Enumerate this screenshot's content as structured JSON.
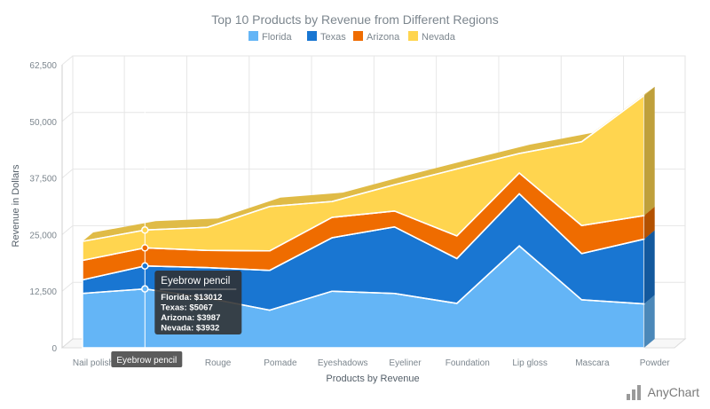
{
  "chart_data": {
    "type": "area",
    "stacked": true,
    "three_d": true,
    "title": "Top 10 Products by Revenue from Different Regions",
    "xlabel": "Products by Revenue",
    "ylabel": "Revenue in Dollars",
    "ylim": [
      0,
      62500
    ],
    "yticks": [
      0,
      12500,
      25000,
      37500,
      50000,
      62500
    ],
    "ytick_labels": [
      "0",
      "12,500",
      "25,000",
      "37,500",
      "50,000",
      "62,500"
    ],
    "grid": true,
    "legend_position": "top",
    "categories": [
      "Nail polish",
      "Eyebrow pencil",
      "Rouge",
      "Pomade",
      "Eyeshadows",
      "Eyeliner",
      "Foundation",
      "Lip gloss",
      "Mascara",
      "Powder"
    ],
    "series": [
      {
        "name": "Florida",
        "color": "#64b5f6",
        "values": [
          12000,
          13012,
          11000,
          8300,
          12500,
          12000,
          9800,
          22500,
          10600,
          9700
        ]
      },
      {
        "name": "Texas",
        "color": "#1976d2",
        "values": [
          3000,
          5067,
          6700,
          8800,
          11800,
          14700,
          9900,
          11500,
          10200,
          14300
        ]
      },
      {
        "name": "Arizona",
        "color": "#ef6c00",
        "values": [
          4300,
          3987,
          3800,
          4300,
          4500,
          3500,
          5000,
          4600,
          6200,
          5200
        ]
      },
      {
        "name": "Nevada",
        "color": "#ffd54f",
        "values": [
          4200,
          3932,
          5100,
          9800,
          3500,
          5800,
          14800,
          4300,
          18500,
          26500
        ]
      }
    ],
    "tooltip": {
      "title": "Eyebrow pencil",
      "lines": [
        "Florida: $13012",
        "Texas: $5067",
        "Arizona: $3987",
        "Nevada: $3932"
      ]
    },
    "crosshair_label": "Eyebrow pencil",
    "hover_index": 1
  },
  "credits": {
    "text": "AnyChart"
  }
}
